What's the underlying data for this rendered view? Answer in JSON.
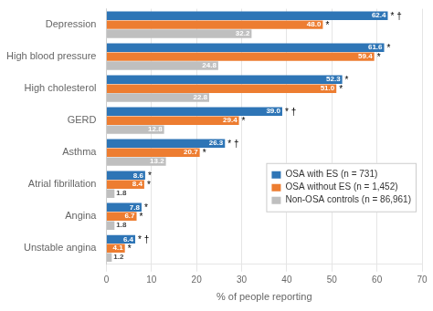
{
  "chart_data": {
    "type": "bar",
    "orientation": "horizontal",
    "categories": [
      "Depression",
      "High blood pressure",
      "High cholesterol",
      "GERD",
      "Asthma",
      "Atrial fibrillation",
      "Angina",
      "Unstable angina"
    ],
    "series": [
      {
        "name": "OSA with ES (n = 731)",
        "color": "#2E75B6",
        "values": [
          62.4,
          61.6,
          52.3,
          39.0,
          26.3,
          8.6,
          7.8,
          6.4
        ],
        "value_labels": [
          "62.4",
          "61.6",
          "52.3",
          "39.0",
          "26.3",
          "8.6",
          "7.8",
          "6.4"
        ],
        "annotations": [
          "* †",
          "*",
          "*",
          "* †",
          "* †",
          "*",
          "*",
          "* †"
        ]
      },
      {
        "name": "OSA without ES (n = 1,452)",
        "color": "#ED7D31",
        "values": [
          48.0,
          59.4,
          51.0,
          29.4,
          20.7,
          8.4,
          6.7,
          4.1
        ],
        "value_labels": [
          "48.0",
          "59.4",
          "51.0",
          "29.4",
          "20.7",
          "8.4",
          "6.7",
          "4.1"
        ],
        "annotations": [
          "*",
          "*",
          "*",
          "*",
          "*",
          "*",
          "*",
          "*"
        ]
      },
      {
        "name": "Non-OSA controls (n = 86,961)",
        "color": "#BFBFBF",
        "values": [
          32.2,
          24.8,
          22.8,
          12.8,
          13.2,
          1.8,
          1.8,
          1.2
        ]
      }
    ],
    "xlabel": "% of people reporting",
    "xlim": [
      0,
      70
    ],
    "xticks": [
      0,
      10,
      20,
      30,
      40,
      50,
      60,
      70
    ],
    "grid": true,
    "legend": "lower right",
    "data_labels": true
  }
}
